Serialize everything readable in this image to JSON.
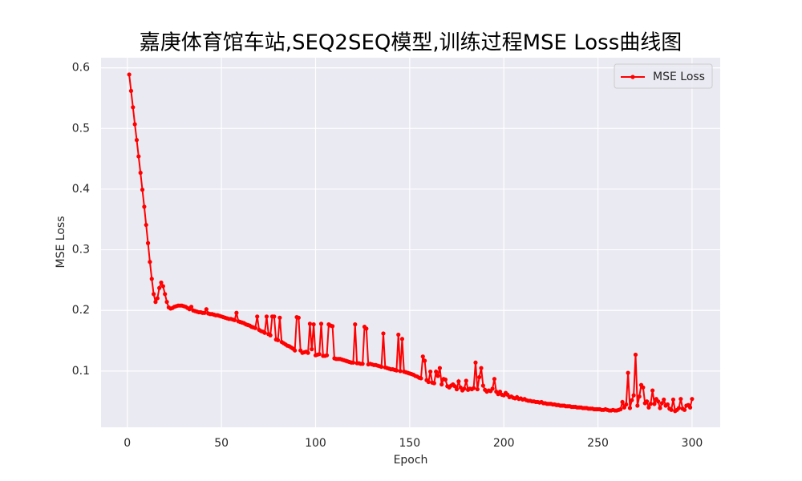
{
  "chart_data": {
    "type": "line",
    "title": "嘉庚体育馆车站,SEQ2SEQ模型,训练过程MSE Loss曲线图",
    "xlabel": "Epoch",
    "ylabel": "MSE Loss",
    "x": [
      1,
      2,
      3,
      4,
      5,
      6,
      7,
      8,
      9,
      10,
      11,
      12,
      13,
      14,
      15,
      16,
      17,
      18,
      19,
      20,
      21,
      22,
      23,
      24,
      25,
      26,
      27,
      28,
      29,
      30,
      31,
      32,
      33,
      34,
      35,
      36,
      37,
      38,
      39,
      40,
      41,
      42,
      43,
      44,
      45,
      46,
      47,
      48,
      49,
      50,
      51,
      52,
      53,
      54,
      55,
      56,
      57,
      58,
      59,
      60,
      61,
      62,
      63,
      64,
      65,
      66,
      67,
      68,
      69,
      70,
      71,
      72,
      73,
      74,
      75,
      76,
      77,
      78,
      79,
      80,
      81,
      82,
      83,
      84,
      85,
      86,
      87,
      88,
      89,
      90,
      91,
      92,
      93,
      94,
      95,
      96,
      97,
      98,
      99,
      100,
      101,
      102,
      103,
      104,
      105,
      106,
      107,
      108,
      109,
      110,
      111,
      112,
      113,
      114,
      115,
      116,
      117,
      118,
      119,
      120,
      121,
      122,
      123,
      124,
      125,
      126,
      127,
      128,
      129,
      130,
      131,
      132,
      133,
      134,
      135,
      136,
      137,
      138,
      139,
      140,
      141,
      142,
      143,
      144,
      145,
      146,
      147,
      148,
      149,
      150,
      151,
      152,
      153,
      154,
      155,
      156,
      157,
      158,
      159,
      160,
      161,
      162,
      163,
      164,
      165,
      166,
      167,
      168,
      169,
      170,
      171,
      172,
      173,
      174,
      175,
      176,
      177,
      178,
      179,
      180,
      181,
      182,
      183,
      184,
      185,
      186,
      187,
      188,
      189,
      190,
      191,
      192,
      193,
      194,
      195,
      196,
      197,
      198,
      199,
      200,
      201,
      202,
      203,
      204,
      205,
      206,
      207,
      208,
      209,
      210,
      211,
      212,
      213,
      214,
      215,
      216,
      217,
      218,
      219,
      220,
      221,
      222,
      223,
      224,
      225,
      226,
      227,
      228,
      229,
      230,
      231,
      232,
      233,
      234,
      235,
      236,
      237,
      238,
      239,
      240,
      241,
      242,
      243,
      244,
      245,
      246,
      247,
      248,
      249,
      250,
      251,
      252,
      253,
      254,
      255,
      256,
      257,
      258,
      259,
      260,
      261,
      262,
      263,
      264,
      265,
      266,
      267,
      268,
      269,
      270,
      271,
      272,
      273,
      274,
      275,
      276,
      277,
      278,
      279,
      280,
      281,
      282,
      283,
      284,
      285,
      286,
      287,
      288,
      289,
      290,
      291,
      292,
      293,
      294,
      295,
      296,
      297,
      298,
      299,
      300
    ],
    "series": [
      {
        "name": "MSE Loss",
        "color": "#ff0000",
        "values": [
          0.589,
          0.562,
          0.535,
          0.507,
          0.481,
          0.454,
          0.427,
          0.399,
          0.371,
          0.341,
          0.311,
          0.28,
          0.252,
          0.227,
          0.214,
          0.22,
          0.237,
          0.246,
          0.24,
          0.227,
          0.214,
          0.205,
          0.203,
          0.204,
          0.206,
          0.207,
          0.208,
          0.208,
          0.208,
          0.207,
          0.206,
          0.204,
          0.202,
          0.206,
          0.2,
          0.199,
          0.198,
          0.197,
          0.197,
          0.196,
          0.196,
          0.202,
          0.195,
          0.194,
          0.194,
          0.193,
          0.192,
          0.192,
          0.191,
          0.19,
          0.189,
          0.188,
          0.187,
          0.186,
          0.186,
          0.185,
          0.184,
          0.196,
          0.182,
          0.181,
          0.18,
          0.179,
          0.177,
          0.176,
          0.175,
          0.173,
          0.172,
          0.171,
          0.19,
          0.168,
          0.166,
          0.165,
          0.163,
          0.19,
          0.161,
          0.159,
          0.19,
          0.19,
          0.152,
          0.151,
          0.188,
          0.148,
          0.146,
          0.144,
          0.142,
          0.141,
          0.139,
          0.137,
          0.134,
          0.189,
          0.188,
          0.134,
          0.13,
          0.131,
          0.132,
          0.13,
          0.178,
          0.136,
          0.177,
          0.126,
          0.127,
          0.128,
          0.178,
          0.125,
          0.125,
          0.126,
          0.177,
          0.175,
          0.174,
          0.121,
          0.12,
          0.12,
          0.12,
          0.119,
          0.118,
          0.117,
          0.116,
          0.115,
          0.114,
          0.114,
          0.177,
          0.113,
          0.113,
          0.112,
          0.112,
          0.173,
          0.17,
          0.111,
          0.112,
          0.111,
          0.11,
          0.11,
          0.109,
          0.108,
          0.107,
          0.162,
          0.106,
          0.105,
          0.104,
          0.103,
          0.103,
          0.102,
          0.101,
          0.16,
          0.1,
          0.153,
          0.099,
          0.098,
          0.097,
          0.096,
          0.095,
          0.094,
          0.092,
          0.091,
          0.089,
          0.088,
          0.124,
          0.117,
          0.085,
          0.082,
          0.099,
          0.081,
          0.08,
          0.099,
          0.092,
          0.105,
          0.078,
          0.087,
          0.086,
          0.075,
          0.073,
          0.076,
          0.078,
          0.075,
          0.07,
          0.083,
          0.073,
          0.068,
          0.071,
          0.084,
          0.069,
          0.071,
          0.07,
          0.072,
          0.114,
          0.07,
          0.09,
          0.105,
          0.076,
          0.069,
          0.066,
          0.068,
          0.067,
          0.071,
          0.087,
          0.066,
          0.062,
          0.066,
          0.061,
          0.06,
          0.064,
          0.061,
          0.057,
          0.058,
          0.056,
          0.055,
          0.057,
          0.054,
          0.055,
          0.053,
          0.054,
          0.052,
          0.051,
          0.051,
          0.05,
          0.05,
          0.049,
          0.049,
          0.048,
          0.049,
          0.047,
          0.047,
          0.046,
          0.046,
          0.046,
          0.045,
          0.045,
          0.044,
          0.044,
          0.043,
          0.043,
          0.043,
          0.042,
          0.042,
          0.042,
          0.041,
          0.041,
          0.041,
          0.04,
          0.04,
          0.04,
          0.039,
          0.039,
          0.039,
          0.038,
          0.038,
          0.038,
          0.037,
          0.037,
          0.037,
          0.037,
          0.036,
          0.036,
          0.037,
          0.036,
          0.035,
          0.035,
          0.036,
          0.035,
          0.035,
          0.036,
          0.037,
          0.049,
          0.04,
          0.045,
          0.097,
          0.039,
          0.052,
          0.06,
          0.127,
          0.043,
          0.058,
          0.077,
          0.073,
          0.047,
          0.05,
          0.04,
          0.046,
          0.068,
          0.046,
          0.054,
          0.05,
          0.039,
          0.047,
          0.053,
          0.043,
          0.045,
          0.038,
          0.036,
          0.053,
          0.034,
          0.036,
          0.039,
          0.054,
          0.038,
          0.036,
          0.043,
          0.044,
          0.04,
          0.054
        ]
      }
    ],
    "xlim": [
      -13.95,
      314.95
    ],
    "xticks": [
      0,
      50,
      100,
      150,
      200,
      250,
      300
    ],
    "ylim": [
      0.0073,
      0.6167
    ],
    "yticks": [
      0.1,
      0.2,
      0.3,
      0.4,
      0.5,
      0.6
    ],
    "grid": true,
    "legend": "upper right"
  }
}
